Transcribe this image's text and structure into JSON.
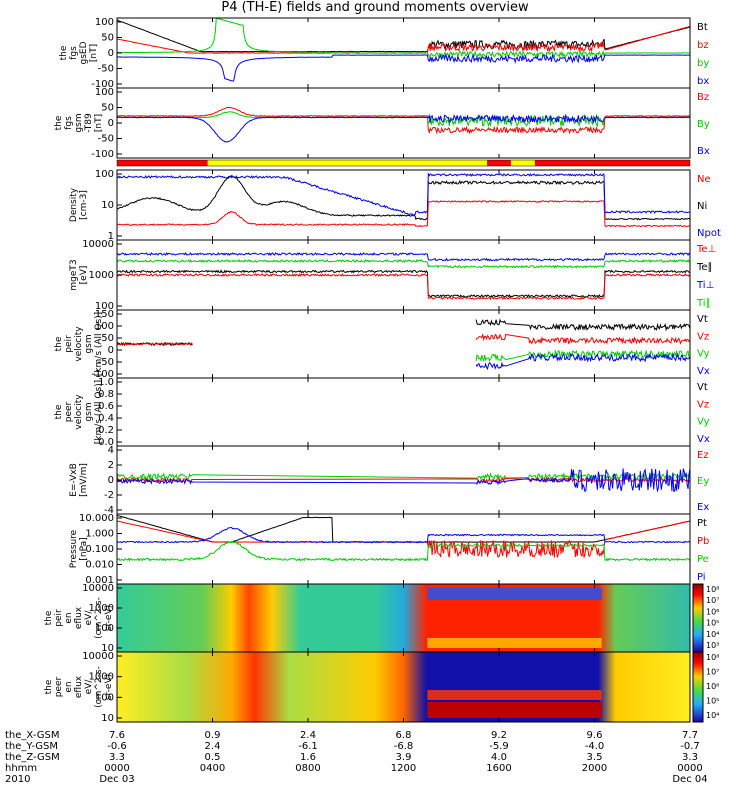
{
  "title": "P4 (TH-E) fields and ground moments overview",
  "colors": {
    "black": "#000000",
    "red": "#ff0000",
    "green": "#00cc00",
    "blue": "#0000ff",
    "yellow": "#ffff00"
  },
  "chart_data": {
    "type": "multi-panel-timeseries",
    "title": "P4 (TH-E) fields and ground moments overview",
    "x_axis": {
      "range_hours": [
        0,
        24
      ],
      "tick_hours": [
        0,
        4,
        8,
        12,
        16,
        20,
        24
      ]
    },
    "panels": [
      {
        "id": "fgs",
        "ylabel": [
          "the",
          "fgs",
          "gsED",
          "[nT]"
        ],
        "ticks": [
          "100",
          "50",
          "0",
          "-50",
          "-100"
        ],
        "series": [
          {
            "label": "Bt",
            "color": "black"
          },
          {
            "label": "bz",
            "color": "red"
          },
          {
            "label": "by",
            "color": "green"
          },
          {
            "label": "bx",
            "color": "blue"
          }
        ]
      },
      {
        "id": "fgs_gsm",
        "ylabel": [
          "the",
          "fgs",
          "gsm",
          "-T89",
          "[nT]"
        ],
        "ticks": [
          "100",
          "50",
          "0",
          "-50",
          "-100"
        ],
        "series": [
          {
            "label": "Bz",
            "color": "red"
          },
          {
            "label": "By",
            "color": "green"
          },
          {
            "label": "Bx",
            "color": "blue"
          }
        ]
      },
      {
        "id": "density",
        "ylabel": [
          "Density",
          "[cm-3]"
        ],
        "ticks": [
          "100",
          "10",
          "1"
        ],
        "series": [
          {
            "label": "Ne",
            "color": "red"
          },
          {
            "label": "Ni",
            "color": "black"
          },
          {
            "label": "Npot",
            "color": "blue"
          }
        ]
      },
      {
        "id": "temp",
        "ylabel": [
          "mgeT3",
          "[eV]"
        ],
        "ticks": [
          "10000",
          "1000",
          "100"
        ],
        "series": [
          {
            "label": "Te⊥",
            "color": "red"
          },
          {
            "label": "Te∥",
            "color": "black"
          },
          {
            "label": "Ti⊥",
            "color": "blue"
          },
          {
            "label": "Ti∥",
            "color": "green"
          }
        ]
      },
      {
        "id": "peir_v",
        "ylabel": [
          "the",
          "peir",
          "velocity",
          "gsm",
          "[km/s (All Qs)]"
        ],
        "ticks": [
          "150",
          "100",
          "50",
          "0",
          "-50",
          "-100"
        ],
        "series": [
          {
            "label": "Vt",
            "color": "black"
          },
          {
            "label": "Vz",
            "color": "red"
          },
          {
            "label": "Vy",
            "color": "green"
          },
          {
            "label": "Vx",
            "color": "blue"
          }
        ]
      },
      {
        "id": "peer_v",
        "ylabel": [
          "the",
          "peer",
          "velocity",
          "gsm",
          "[km/s (All Qs)]"
        ],
        "ticks": [
          "1.0",
          "0.8",
          "0.6",
          "0.4",
          "0.2",
          "0.0"
        ],
        "series": [
          {
            "label": "Vt",
            "color": "black"
          },
          {
            "label": "Vz",
            "color": "red"
          },
          {
            "label": "Vy",
            "color": "green"
          },
          {
            "label": "Vx",
            "color": "blue"
          }
        ]
      },
      {
        "id": "efield",
        "ylabel": [
          "E=-VxB",
          "[mV/m]"
        ],
        "ticks": [
          "4",
          "2",
          "0",
          "-2",
          "-4"
        ],
        "series": [
          {
            "label": "Ez",
            "color": "red"
          },
          {
            "label": "Ey",
            "color": "green"
          },
          {
            "label": "Ex",
            "color": "blue"
          }
        ]
      },
      {
        "id": "pressure",
        "ylabel": [
          "Pressure",
          "[nPa]"
        ],
        "ticks": [
          "10.000",
          "1.000",
          "0.100",
          "0.010",
          "0.001"
        ],
        "series": [
          {
            "label": "Pt",
            "color": "black"
          },
          {
            "label": "Pb",
            "color": "red"
          },
          {
            "label": "Pe",
            "color": "green"
          },
          {
            "label": "Pi",
            "color": "blue"
          }
        ]
      },
      {
        "id": "peir_eflux",
        "ylabel": [
          "the",
          "peir",
          "en",
          "eflux",
          "eV/",
          "(cm^2-s-",
          "sr-eV)"
        ],
        "ticks": [
          "10000",
          "1000",
          "100",
          "10"
        ],
        "colorbar": [
          "10⁸",
          "10⁷",
          "10⁶",
          "10⁵",
          "10⁴",
          "10³"
        ]
      },
      {
        "id": "peer_eflux",
        "ylabel": [
          "the",
          "peer",
          "en",
          "eflux",
          "eV/",
          "(cm^2-s-",
          "sr-eV)"
        ],
        "ticks": [
          "10000",
          "1000",
          "100",
          "10"
        ],
        "colorbar": [
          "10⁸",
          "10⁷",
          "10⁶",
          "10⁵",
          "10⁴"
        ]
      }
    ],
    "ephemeris": {
      "labels": [
        "the_X-GSM",
        "the_Y-GSM",
        "the_Z-GSM",
        "hhmm",
        "2010"
      ],
      "columns": [
        [
          "7.6",
          "-0.6",
          "3.3",
          "0000",
          "Dec 03"
        ],
        [
          "0.9",
          "2.4",
          "0.5",
          "0400",
          ""
        ],
        [
          "2.4",
          "-6.1",
          "1.6",
          "0800",
          ""
        ],
        [
          "6.8",
          "-6.8",
          "3.9",
          "1200",
          ""
        ],
        [
          "9.2",
          "-5.9",
          "4.0",
          "1600",
          ""
        ],
        [
          "9.6",
          "-4.0",
          "3.5",
          "2000",
          ""
        ],
        [
          "7.7",
          "-0.7",
          "3.3",
          "0000",
          "Dec 04"
        ]
      ]
    }
  }
}
